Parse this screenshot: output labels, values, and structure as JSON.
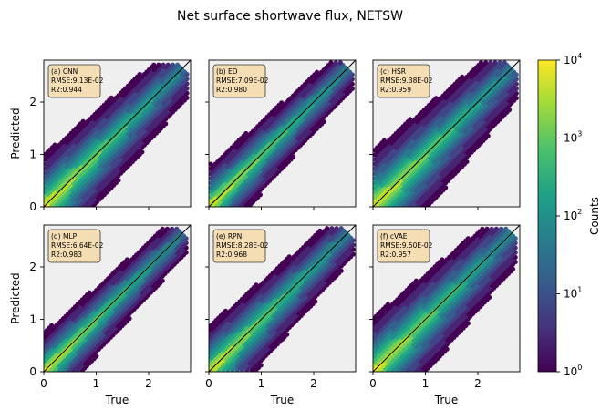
{
  "title": "Net surface shortwave flux, NETSW",
  "colorbar": {
    "label": "Counts",
    "ticks": [
      "10^0",
      "10^1",
      "10^2",
      "10^3",
      "10^4"
    ],
    "scale": "log"
  },
  "chart_data": [
    {
      "type": "heatmap",
      "panel": "(a) CNN",
      "rmse": "RMSE:9.13E-02",
      "r2": "R2:0.944",
      "xlabel": "",
      "ylabel": "Predicted",
      "xlim": [
        0,
        2.8
      ],
      "ylim": [
        0,
        2.8
      ],
      "spread": 0.55
    },
    {
      "type": "heatmap",
      "panel": "(b) ED",
      "rmse": "RMSE:7.09E-02",
      "r2": "R2:0.980",
      "xlabel": "",
      "ylabel": "",
      "xlim": [
        0,
        2.8
      ],
      "ylim": [
        0,
        2.8
      ],
      "spread": 0.42
    },
    {
      "type": "heatmap",
      "panel": "(c) HSR",
      "rmse": "RMSE:9.38E-02",
      "r2": "R2:0.959",
      "xlabel": "",
      "ylabel": "",
      "xlim": [
        0,
        2.8
      ],
      "ylim": [
        0,
        2.8
      ],
      "spread": 0.6
    },
    {
      "type": "heatmap",
      "panel": "(d) MLP",
      "rmse": "RMSE:6.64E-02",
      "r2": "R2:0.983",
      "xlabel": "True",
      "ylabel": "Predicted",
      "xlim": [
        0,
        2.8
      ],
      "ylim": [
        0,
        2.8
      ],
      "spread": 0.4
    },
    {
      "type": "heatmap",
      "panel": "(e) RPN",
      "rmse": "RMSE:8.28E-02",
      "r2": "R2:0.968",
      "xlabel": "True",
      "ylabel": "",
      "xlim": [
        0,
        2.8
      ],
      "ylim": [
        0,
        2.8
      ],
      "spread": 0.48
    },
    {
      "type": "heatmap",
      "panel": "(f) cVAE",
      "rmse": "RMSE:9.50E-02",
      "r2": "R2:0.957",
      "xlabel": "True",
      "ylabel": "",
      "xlim": [
        0,
        2.8
      ],
      "ylim": [
        0,
        2.8
      ],
      "spread": 0.58
    }
  ],
  "x_ticks": [
    "0",
    "1",
    "2"
  ],
  "y_ticks": [
    "0",
    "1",
    "2"
  ]
}
